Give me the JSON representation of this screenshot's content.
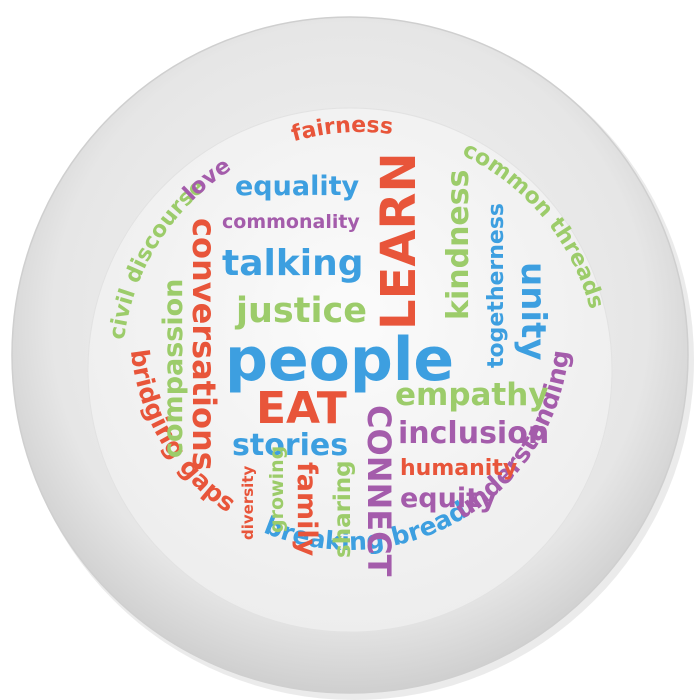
{
  "colors": {
    "blue": "#3d9fe0",
    "red": "#e8553a",
    "green": "#9ccc6a",
    "purple": "#a45cab",
    "plate_rim": "#dcdcdc",
    "plate_well": "#f4f4f4"
  },
  "words": {
    "people": "people",
    "learn": "LEARN",
    "eat": "EAT",
    "connect": "CONNECT",
    "talking": "talking",
    "justice": "justice",
    "equality": "equality",
    "commonality": "commonality",
    "conversations": "conversations",
    "compassion": "compassion",
    "kindness": "kindness",
    "togetherness": "togetherness",
    "unity": "unity",
    "empathy": "empathy",
    "inclusion": "inclusion",
    "humanity": "humanity",
    "equity": "equity",
    "stories": "stories",
    "diversity": "diversity",
    "growing": "growing",
    "family": "family",
    "sharing": "sharing",
    "fairness": "fairness",
    "love": "love",
    "civil_discourse": "civil discourse",
    "common_threads": "common threads",
    "bridging_gaps": "bridging gaps",
    "breaking_bread": "breaking bread",
    "understanding": "understanding"
  }
}
